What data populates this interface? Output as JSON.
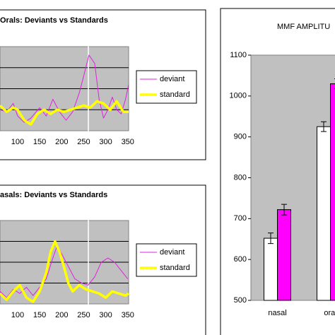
{
  "chart_data": [
    {
      "type": "line",
      "title": "Orals: Deviants vs Standards",
      "xlim": [
        60,
        352
      ],
      "xticks": [
        100,
        150,
        200,
        250,
        300,
        350
      ],
      "ylim": [
        0,
        4
      ],
      "yticks": [
        1,
        2,
        3
      ],
      "grid": true,
      "series": [
        {
          "name": "deviant",
          "color": "#e020e0",
          "width": 1,
          "x": [
            60,
            75,
            90,
            100,
            115,
            130,
            150,
            165,
            180,
            195,
            210,
            225,
            240,
            250,
            262,
            275,
            285,
            295,
            305,
            315,
            325,
            335,
            345,
            352
          ],
          "values": [
            1.0,
            0.9,
            1.3,
            0.7,
            0.4,
            0.6,
            1.1,
            0.7,
            1.5,
            0.9,
            0.5,
            0.9,
            1.8,
            2.6,
            3.6,
            3.2,
            1.5,
            0.6,
            1.0,
            1.6,
            1.0,
            0.8,
            1.5,
            2.2
          ]
        },
        {
          "name": "standard",
          "color": "#ffff00",
          "width": 3.5,
          "x": [
            60,
            75,
            90,
            100,
            115,
            130,
            145,
            160,
            175,
            190,
            205,
            220,
            235,
            250,
            265,
            280,
            295,
            310,
            325,
            340,
            352
          ],
          "values": [
            1.2,
            0.9,
            1.1,
            1.0,
            0.5,
            0.3,
            0.8,
            1.0,
            0.8,
            1.0,
            0.9,
            1.0,
            1.1,
            1.2,
            1.1,
            1.4,
            1.3,
            1.0,
            1.4,
            0.9,
            0.9
          ]
        }
      ]
    },
    {
      "type": "line",
      "title": "asals:  Deviants vs Standards",
      "xlim": [
        60,
        352
      ],
      "xticks": [
        100,
        150,
        200,
        250,
        300,
        350
      ],
      "ylim": [
        0,
        4
      ],
      "yticks": [
        1,
        2,
        3
      ],
      "grid": true,
      "series": [
        {
          "name": "deviant",
          "color": "#e020e0",
          "width": 1,
          "x": [
            60,
            75,
            90,
            105,
            120,
            135,
            150,
            165,
            180,
            190,
            200,
            215,
            230,
            245,
            260,
            275,
            290,
            305,
            320,
            335,
            350
          ],
          "values": [
            0.6,
            0.3,
            0.7,
            0.5,
            0.8,
            0.4,
            0.8,
            1.2,
            2.2,
            2.8,
            2.4,
            1.8,
            1.2,
            1.0,
            0.9,
            1.3,
            2.0,
            2.2,
            2.0,
            1.6,
            1.2
          ]
        },
        {
          "name": "standard",
          "color": "#ffff00",
          "width": 3.5,
          "x": [
            60,
            75,
            90,
            105,
            120,
            135,
            150,
            165,
            175,
            185,
            195,
            205,
            215,
            225,
            240,
            255,
            270,
            285,
            300,
            315,
            330,
            345,
            352
          ],
          "values": [
            0.5,
            0.2,
            0.6,
            0.9,
            0.3,
            0.1,
            0.6,
            1.5,
            2.5,
            3.0,
            2.5,
            1.8,
            1.0,
            0.6,
            0.9,
            0.7,
            0.6,
            0.5,
            0.3,
            0.6,
            0.5,
            0.4,
            0.5
          ]
        }
      ]
    },
    {
      "type": "bar",
      "title": "MMF  AMPLITU",
      "categories": [
        "nasal",
        "oral"
      ],
      "ylim": [
        500,
        1100
      ],
      "yticks": [
        500,
        600,
        700,
        800,
        900,
        1000,
        1100
      ],
      "grid": false,
      "series": [
        {
          "color": "#ffffff",
          "values": [
            652,
            925
          ],
          "errors": [
            13,
            12
          ]
        },
        {
          "color": "#ff00ff",
          "values": [
            722,
            1030
          ],
          "errors": [
            13,
            12
          ]
        }
      ]
    }
  ]
}
